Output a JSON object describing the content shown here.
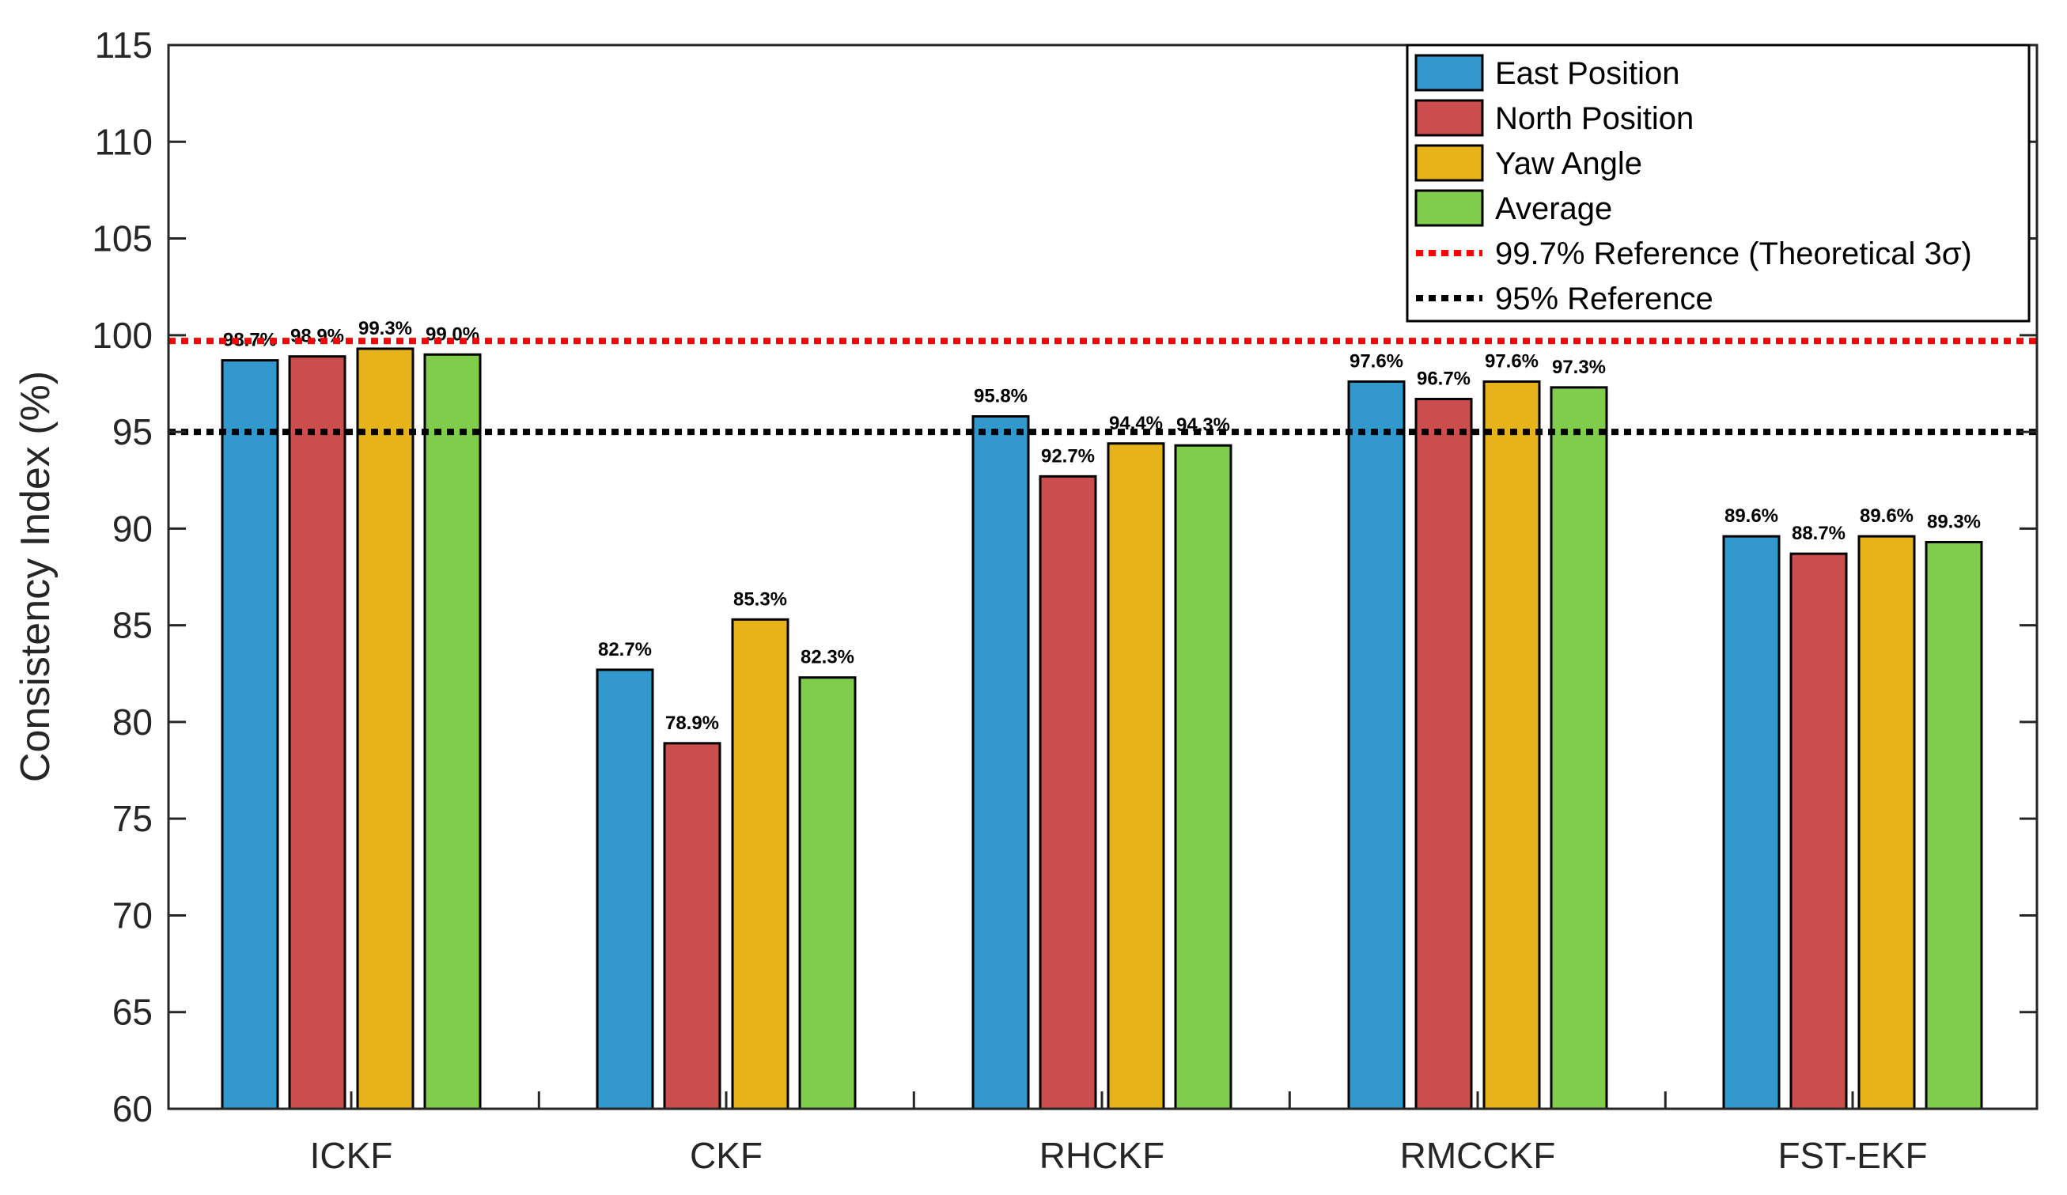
{
  "chart_data": {
    "type": "bar",
    "title": "",
    "xlabel": "",
    "ylabel": "Consistency Index (%)",
    "ylim": [
      60,
      115
    ],
    "yticks": [
      "60",
      "65",
      "70",
      "75",
      "80",
      "85",
      "90",
      "95",
      "100",
      "105",
      "110",
      "115"
    ],
    "categories": [
      "ICKF",
      "CKF",
      "RHCKF",
      "RMCCKF",
      "FST-EKF"
    ],
    "series": [
      {
        "name": "East Position",
        "color": "#3399cc",
        "values": [
          98.7,
          82.7,
          95.8,
          97.6,
          89.6
        ],
        "labels": [
          "98.7%",
          "82.7%",
          "95.8%",
          "97.6%",
          "89.6%"
        ]
      },
      {
        "name": "North Position",
        "color": "#cc4d4d",
        "values": [
          98.9,
          78.9,
          92.7,
          96.7,
          88.7
        ],
        "labels": [
          "98.9%",
          "78.9%",
          "92.7%",
          "96.7%",
          "88.7%"
        ]
      },
      {
        "name": "Yaw Angle",
        "color": "#e6b31a",
        "values": [
          99.3,
          85.3,
          94.4,
          97.6,
          89.6
        ],
        "labels": [
          "99.3%",
          "85.3%",
          "94.4%",
          "97.6%",
          "89.6%"
        ]
      },
      {
        "name": "Average",
        "color": "#80cc4d",
        "values": [
          99.0,
          82.3,
          94.3,
          97.3,
          89.3
        ],
        "labels": [
          "99.0%",
          "82.3%",
          "94.3%",
          "97.3%",
          "89.3%"
        ]
      }
    ],
    "reference_lines": [
      {
        "name": "99.7% Reference (Theoretical 3σ)",
        "value": 99.7,
        "color": "#ff0000",
        "style": "dotted"
      },
      {
        "name": "95% Reference",
        "value": 95,
        "color": "#000000",
        "style": "dotted"
      }
    ],
    "legend_position": "top-right",
    "grid": false
  }
}
